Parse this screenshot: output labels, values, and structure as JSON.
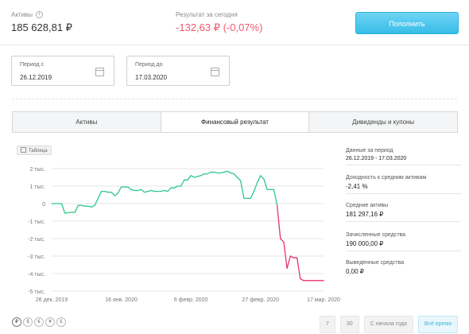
{
  "header": {
    "assets_label": "Активы",
    "assets_value": "185 628,81 ₽",
    "result_label": "Результат за сегодня",
    "result_value": "-132,63 ₽ (-0,07%)",
    "add_button": "Пополнить"
  },
  "period": {
    "from_label": "Период с",
    "from_value": "26.12.2019",
    "to_label": "Период до",
    "to_value": "17.03.2020"
  },
  "tabs": [
    {
      "label": "Активы",
      "active": false
    },
    {
      "label": "Финансовый результат",
      "active": true
    },
    {
      "label": "Дивиденды и купоны",
      "active": false
    }
  ],
  "table_button": "Таблица",
  "stats": [
    {
      "label": "Данные за период",
      "value": "26.12.2019 - 17.03.2020"
    },
    {
      "label": "Доходность к средним активам",
      "value": "-2,41 %"
    },
    {
      "label": "Средние активы",
      "value": "181 297,16 ₽"
    },
    {
      "label": "Зачисленные средства",
      "value": "190 000,00 ₽"
    },
    {
      "label": "Выведенные средства",
      "value": "0,00 ₽"
    }
  ],
  "currencies": [
    "₽",
    "$",
    "€",
    "¥",
    "£"
  ],
  "period_buttons": [
    {
      "label": "7",
      "selected": false
    },
    {
      "label": "30",
      "selected": false
    },
    {
      "label": "С начала года",
      "selected": false
    },
    {
      "label": "Всё время",
      "selected": true
    }
  ],
  "colors": {
    "positive": "#2ec88a",
    "negative": "#e8336b",
    "accent": "#3ab7e4"
  },
  "chart_data": {
    "type": "line",
    "y_tick_labels": [
      "2 тыс.",
      "1 тыс.",
      "0",
      "-1 тыс.",
      "-2 тыс.",
      "-3 тыс.",
      "-4 тыс.",
      "-5 тыс."
    ],
    "y_ticks": [
      2000,
      1000,
      0,
      -1000,
      -2000,
      -3000,
      -4000,
      -5000
    ],
    "x_tick_labels": [
      "26 дек. 2019",
      "16 янв. 2020",
      "6 февр. 2020",
      "27 февр. 2020",
      "17 мар. 2020"
    ],
    "x_ticks": [
      0,
      21,
      42,
      63,
      82
    ],
    "ylim": [
      -5000,
      2000
    ],
    "xlim": [
      0,
      82
    ],
    "series": [
      {
        "x": [
          0,
          3,
          4,
          6,
          7,
          8,
          9,
          10,
          11,
          12,
          13,
          15,
          16,
          17,
          18,
          19,
          20,
          21,
          22,
          23,
          24,
          25,
          26,
          27,
          28,
          29,
          30,
          31,
          32,
          33,
          34,
          35,
          36,
          37,
          38,
          39,
          40,
          41,
          42,
          43,
          44,
          45,
          46,
          47,
          48,
          49,
          50,
          51,
          52,
          53,
          54,
          55,
          56,
          57,
          58,
          59,
          60,
          61,
          62,
          63,
          64,
          65,
          66,
          67,
          68,
          69,
          70,
          71,
          72,
          73,
          74,
          75,
          76,
          77,
          78,
          79,
          80,
          81,
          82
        ],
        "y": [
          0,
          0,
          -550,
          -500,
          -500,
          -100,
          -100,
          -150,
          -150,
          -200,
          -100,
          700,
          700,
          650,
          650,
          450,
          600,
          950,
          950,
          950,
          800,
          750,
          750,
          800,
          650,
          700,
          750,
          700,
          700,
          700,
          750,
          700,
          900,
          900,
          1000,
          1000,
          1350,
          1350,
          1600,
          1500,
          1550,
          1600,
          1700,
          1700,
          1800,
          1800,
          1750,
          1750,
          1800,
          1850,
          1750,
          1700,
          1500,
          1300,
          300,
          300,
          300,
          700,
          1200,
          1600,
          1400,
          800,
          800,
          800,
          -100,
          -2000,
          -2200,
          -3700,
          -3000,
          -3100,
          -3100,
          -4300,
          -4400,
          -4400,
          -4400,
          -4400,
          -4400,
          -4400,
          -4400
        ],
        "negative_from_index": 64
      }
    ],
    "grid": true
  }
}
